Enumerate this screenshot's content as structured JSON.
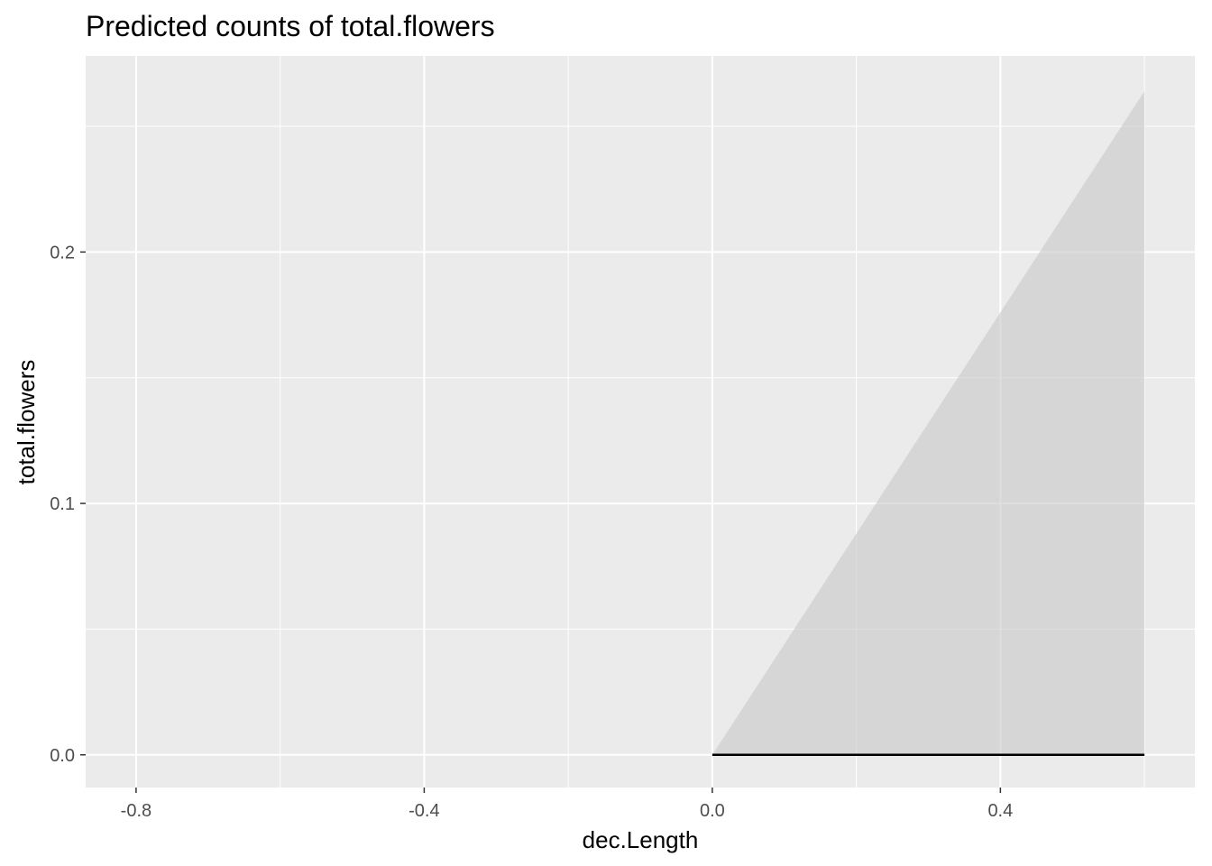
{
  "chart_data": {
    "type": "line",
    "title": "Predicted counts of total.flowers",
    "xlabel": "dec.Length",
    "ylabel": "total.flowers",
    "xlim": [
      -0.87,
      0.67
    ],
    "ylim": [
      -0.013,
      0.278
    ],
    "x_ticks": [
      -0.8,
      -0.4,
      0.0,
      0.4
    ],
    "x_tick_labels": [
      "-0.8",
      "-0.4",
      "0.0",
      "0.4"
    ],
    "y_ticks": [
      0.0,
      0.1,
      0.2
    ],
    "y_tick_labels": [
      "0.0",
      "0.1",
      "0.2"
    ],
    "x_minor_ticks": [
      -0.6,
      -0.2,
      0.2,
      0.6
    ],
    "y_minor_ticks": [
      0.05,
      0.15,
      0.25
    ],
    "grid": true,
    "series": [
      {
        "x": [
          0.0,
          0.6
        ],
        "y": [
          0.0,
          0.0
        ],
        "ci_low": [
          0.0,
          0.0
        ],
        "ci_high": [
          0.0,
          0.264
        ]
      }
    ],
    "colors": {
      "panel_background": "#ebebeb",
      "grid": "#ffffff",
      "line": "#000000",
      "ribbon": "#c8c8c8"
    }
  }
}
